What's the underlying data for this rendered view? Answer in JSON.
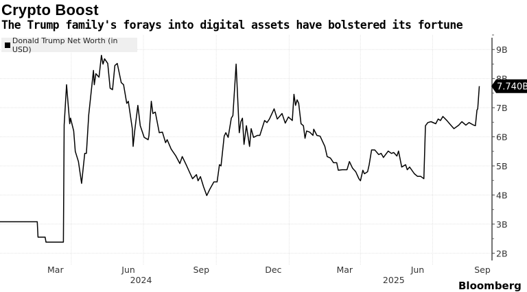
{
  "header": {
    "title": "Crypto Boost",
    "subtitle": "The Trump family's forays into digital assets have bolstered its fortune"
  },
  "footer": {
    "source": "Bloomberg"
  },
  "chart_data": {
    "type": "line",
    "title": "Crypto Boost",
    "subtitle": "The Trump family's forays into digital assets have bolstered its fortune",
    "legend": {
      "placement": "top-left",
      "entries": [
        "Donald Trump Net Worth (in USD)"
      ]
    },
    "grid": true,
    "line_color": "#000000",
    "xlim": [
      "2024-01-05",
      "2025-09-17"
    ],
    "ylim": [
      1.75,
      9.5
    ],
    "y_axis_side": "right",
    "y_unit": "B",
    "y_ticks": [
      2,
      3,
      4,
      5,
      6,
      7,
      8,
      9
    ],
    "y_tick_labels": [
      "2B",
      "3B",
      "4B",
      "5B",
      "6B",
      "7B",
      "8B",
      "9B"
    ],
    "x_tick_labels": [
      {
        "label": "Mar",
        "date": "2024-03-15"
      },
      {
        "label": "Jun",
        "date": "2024-06-15"
      },
      {
        "label": "Sep",
        "date": "2024-09-15"
      },
      {
        "label": "Dec",
        "date": "2024-12-15"
      },
      {
        "label": "Mar",
        "date": "2025-03-15"
      },
      {
        "label": "Jun",
        "date": "2025-06-15"
      },
      {
        "label": "Sep",
        "date": "2025-09-10"
      }
    ],
    "x_year_labels": [
      {
        "label": "2024",
        "date": "2024-07-01"
      },
      {
        "label": "2025",
        "date": "2025-05-16"
      }
    ],
    "last_value_label": "7.740B",
    "series": [
      {
        "name": "Donald Trump Net Worth (in USD)",
        "points": [
          [
            "2024-01-05",
            3.08
          ],
          [
            "2024-02-21",
            3.08
          ],
          [
            "2024-02-22",
            2.55
          ],
          [
            "2024-03-02",
            2.55
          ],
          [
            "2024-03-03",
            2.38
          ],
          [
            "2024-03-25",
            2.38
          ],
          [
            "2024-03-26",
            6.4
          ],
          [
            "2024-03-29",
            7.79
          ],
          [
            "2024-04-02",
            6.45
          ],
          [
            "2024-04-03",
            6.64
          ],
          [
            "2024-04-07",
            6.2
          ],
          [
            "2024-04-09",
            5.5
          ],
          [
            "2024-04-13",
            5.15
          ],
          [
            "2024-04-17",
            4.4
          ],
          [
            "2024-04-21",
            5.43
          ],
          [
            "2024-04-23",
            5.43
          ],
          [
            "2024-04-26",
            6.75
          ],
          [
            "2024-05-02",
            8.28
          ],
          [
            "2024-05-03",
            7.79
          ],
          [
            "2024-05-05",
            8.17
          ],
          [
            "2024-05-09",
            8.05
          ],
          [
            "2024-05-12",
            8.8
          ],
          [
            "2024-05-14",
            8.5
          ],
          [
            "2024-05-16",
            8.68
          ],
          [
            "2024-05-20",
            8.52
          ],
          [
            "2024-05-23",
            7.67
          ],
          [
            "2024-05-26",
            7.62
          ],
          [
            "2024-05-29",
            8.45
          ],
          [
            "2024-06-01",
            8.52
          ],
          [
            "2024-06-06",
            7.86
          ],
          [
            "2024-06-09",
            7.79
          ],
          [
            "2024-06-13",
            7.15
          ],
          [
            "2024-06-15",
            7.22
          ],
          [
            "2024-06-20",
            6.28
          ],
          [
            "2024-06-21",
            5.67
          ],
          [
            "2024-06-23",
            6.2
          ],
          [
            "2024-06-27",
            7.08
          ],
          [
            "2024-06-30",
            6.38
          ],
          [
            "2024-07-05",
            5.98
          ],
          [
            "2024-07-10",
            5.9
          ],
          [
            "2024-07-11",
            6.05
          ],
          [
            "2024-07-14",
            7.22
          ],
          [
            "2024-07-16",
            6.8
          ],
          [
            "2024-07-19",
            6.85
          ],
          [
            "2024-07-24",
            6.14
          ],
          [
            "2024-07-28",
            6.16
          ],
          [
            "2024-08-01",
            5.8
          ],
          [
            "2024-08-03",
            5.9
          ],
          [
            "2024-08-08",
            5.58
          ],
          [
            "2024-08-14",
            5.34
          ],
          [
            "2024-08-19",
            5.08
          ],
          [
            "2024-08-22",
            5.32
          ],
          [
            "2024-08-27",
            5.04
          ],
          [
            "2024-08-31",
            4.8
          ],
          [
            "2024-09-04",
            4.56
          ],
          [
            "2024-09-09",
            4.7
          ],
          [
            "2024-09-11",
            4.49
          ],
          [
            "2024-09-14",
            4.63
          ],
          [
            "2024-09-18",
            4.28
          ],
          [
            "2024-09-22",
            3.98
          ],
          [
            "2024-09-26",
            4.21
          ],
          [
            "2024-10-01",
            4.45
          ],
          [
            "2024-10-05",
            4.45
          ],
          [
            "2024-10-08",
            5.04
          ],
          [
            "2024-10-10",
            5.0
          ],
          [
            "2024-10-14",
            6.02
          ],
          [
            "2024-10-16",
            6.14
          ],
          [
            "2024-10-19",
            5.98
          ],
          [
            "2024-10-23",
            6.64
          ],
          [
            "2024-10-25",
            6.73
          ],
          [
            "2024-10-29",
            8.5
          ],
          [
            "2024-11-02",
            6.14
          ],
          [
            "2024-11-04",
            6.52
          ],
          [
            "2024-11-06",
            6.64
          ],
          [
            "2024-11-08",
            5.74
          ],
          [
            "2024-11-11",
            6.38
          ],
          [
            "2024-11-15",
            5.67
          ],
          [
            "2024-11-17",
            6.28
          ],
          [
            "2024-11-20",
            5.98
          ],
          [
            "2024-11-25",
            6.05
          ],
          [
            "2024-11-28",
            6.05
          ],
          [
            "2024-12-04",
            6.56
          ],
          [
            "2024-12-07",
            6.49
          ],
          [
            "2024-12-10",
            6.61
          ],
          [
            "2024-12-16",
            6.96
          ],
          [
            "2024-12-20",
            6.61
          ],
          [
            "2024-12-26",
            6.8
          ],
          [
            "2024-12-30",
            6.47
          ],
          [
            "2025-01-03",
            6.68
          ],
          [
            "2025-01-08",
            6.56
          ],
          [
            "2025-01-10",
            7.46
          ],
          [
            "2025-01-12",
            7.08
          ],
          [
            "2025-01-14",
            7.27
          ],
          [
            "2025-01-16",
            7.15
          ],
          [
            "2025-01-19",
            6.45
          ],
          [
            "2025-01-22",
            6.38
          ],
          [
            "2025-01-24",
            5.95
          ],
          [
            "2025-01-26",
            6.2
          ],
          [
            "2025-01-30",
            6.16
          ],
          [
            "2025-02-03",
            6.05
          ],
          [
            "2025-02-04",
            6.26
          ],
          [
            "2025-02-08",
            6.05
          ],
          [
            "2025-02-12",
            6.02
          ],
          [
            "2025-02-18",
            5.67
          ],
          [
            "2025-02-21",
            5.32
          ],
          [
            "2025-02-25",
            5.27
          ],
          [
            "2025-03-01",
            5.11
          ],
          [
            "2025-03-05",
            5.11
          ],
          [
            "2025-03-07",
            4.85
          ],
          [
            "2025-03-12",
            4.87
          ],
          [
            "2025-03-18",
            4.87
          ],
          [
            "2025-03-21",
            5.15
          ],
          [
            "2025-03-25",
            4.92
          ],
          [
            "2025-03-29",
            4.8
          ],
          [
            "2025-04-02",
            4.56
          ],
          [
            "2025-04-04",
            4.49
          ],
          [
            "2025-04-07",
            4.85
          ],
          [
            "2025-04-09",
            4.73
          ],
          [
            "2025-04-13",
            4.8
          ],
          [
            "2025-04-15",
            5.04
          ],
          [
            "2025-04-18",
            5.55
          ],
          [
            "2025-04-22",
            5.55
          ],
          [
            "2025-04-27",
            5.39
          ],
          [
            "2025-04-30",
            5.43
          ],
          [
            "2025-05-03",
            5.29
          ],
          [
            "2025-05-09",
            5.51
          ],
          [
            "2025-05-13",
            5.43
          ],
          [
            "2025-05-16",
            5.46
          ],
          [
            "2025-05-20",
            5.34
          ],
          [
            "2025-05-22",
            5.51
          ],
          [
            "2025-05-26",
            4.96
          ],
          [
            "2025-05-31",
            5.04
          ],
          [
            "2025-06-02",
            4.87
          ],
          [
            "2025-06-05",
            4.96
          ],
          [
            "2025-06-11",
            4.73
          ],
          [
            "2025-06-15",
            4.64
          ],
          [
            "2025-06-19",
            4.64
          ],
          [
            "2025-06-23",
            4.56
          ],
          [
            "2025-06-25",
            6.38
          ],
          [
            "2025-06-28",
            6.49
          ],
          [
            "2025-07-02",
            6.52
          ],
          [
            "2025-07-08",
            6.45
          ],
          [
            "2025-07-11",
            6.61
          ],
          [
            "2025-07-14",
            6.56
          ],
          [
            "2025-07-17",
            6.7
          ],
          [
            "2025-07-22",
            6.56
          ],
          [
            "2025-07-27",
            6.4
          ],
          [
            "2025-07-31",
            6.28
          ],
          [
            "2025-08-06",
            6.4
          ],
          [
            "2025-08-10",
            6.52
          ],
          [
            "2025-08-15",
            6.4
          ],
          [
            "2025-08-19",
            6.49
          ],
          [
            "2025-08-25",
            6.4
          ],
          [
            "2025-08-27",
            6.38
          ],
          [
            "2025-08-29",
            6.92
          ],
          [
            "2025-08-30",
            6.96
          ],
          [
            "2025-09-01",
            7.74
          ]
        ]
      }
    ]
  }
}
